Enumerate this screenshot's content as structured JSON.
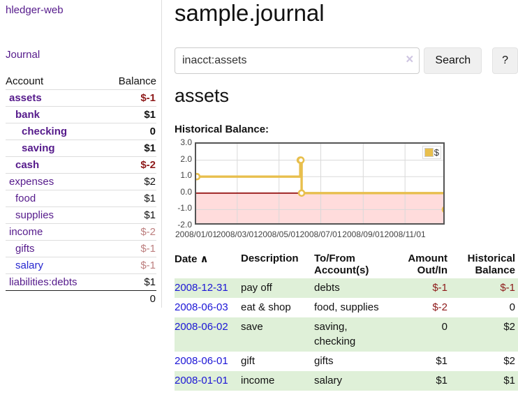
{
  "app": {
    "title": "hledger-web"
  },
  "sidebar": {
    "journal_link": "Journal",
    "accounts_table": {
      "headers": {
        "account": "Account",
        "balance": "Balance"
      },
      "rows": [
        {
          "name": "assets",
          "depth": 1,
          "bold": true,
          "name_blue": false,
          "balance": "$-1",
          "balance_class": "neg"
        },
        {
          "name": "bank",
          "depth": 2,
          "bold": true,
          "name_blue": false,
          "balance": "$1",
          "balance_class": ""
        },
        {
          "name": "checking",
          "depth": 3,
          "bold": true,
          "name_blue": false,
          "balance": "0",
          "balance_class": ""
        },
        {
          "name": "saving",
          "depth": 3,
          "bold": true,
          "name_blue": false,
          "balance": "$1",
          "balance_class": ""
        },
        {
          "name": "cash",
          "depth": 2,
          "bold": true,
          "name_blue": false,
          "balance": "$-2",
          "balance_class": "neg"
        },
        {
          "name": "expenses",
          "depth": 1,
          "bold": false,
          "name_blue": false,
          "balance": "$2",
          "balance_class": ""
        },
        {
          "name": "food",
          "depth": 2,
          "bold": false,
          "name_blue": false,
          "balance": "$1",
          "balance_class": ""
        },
        {
          "name": "supplies",
          "depth": 2,
          "bold": false,
          "name_blue": false,
          "balance": "$1",
          "balance_class": ""
        },
        {
          "name": "income",
          "depth": 1,
          "bold": false,
          "name_blue": false,
          "balance": "$-2",
          "balance_class": "neg-faded"
        },
        {
          "name": "gifts",
          "depth": 2,
          "bold": false,
          "name_blue": false,
          "balance": "$-1",
          "balance_class": "neg-faded"
        },
        {
          "name": "salary",
          "depth": 2,
          "bold": false,
          "name_blue": true,
          "balance": "$-1",
          "balance_class": "neg-faded"
        },
        {
          "name": "liabilities:debts",
          "depth": 1,
          "bold": false,
          "name_blue": false,
          "balance": "$1",
          "balance_class": ""
        }
      ],
      "total": "0"
    }
  },
  "main": {
    "title": "sample.journal",
    "search": {
      "value": "inacct:assets",
      "clear_icon": "×",
      "search_button": "Search",
      "help_button": "?"
    },
    "account_heading": "assets",
    "chart_label": "Historical Balance:"
  },
  "chart_data": {
    "type": "line",
    "step": true,
    "title": "Historical Balance",
    "series": [
      {
        "name": "$",
        "color": "#e8bf4d",
        "points": [
          [
            "2008-01-01",
            1
          ],
          [
            "2008-06-01",
            2
          ],
          [
            "2008-06-02",
            2
          ],
          [
            "2008-06-03",
            0
          ],
          [
            "2008-12-31",
            -1
          ]
        ]
      }
    ],
    "xrange": [
      "2008-01-01",
      "2008-12-31"
    ],
    "ylim": [
      -2.0,
      3.0
    ],
    "yticks": [
      {
        "v": 3,
        "label": "3.0"
      },
      {
        "v": 2,
        "label": "2.0"
      },
      {
        "v": 1,
        "label": "1.0"
      },
      {
        "v": 0,
        "label": "0.0"
      },
      {
        "v": -1,
        "label": "-1.0"
      },
      {
        "v": -2,
        "label": "-2.0"
      }
    ],
    "xticks": [
      {
        "date": "2008-01-01",
        "label": "2008/01/01"
      },
      {
        "date": "2008-03-01",
        "label": "2008/03/01"
      },
      {
        "date": "2008-05-01",
        "label": "2008/05/01"
      },
      {
        "date": "2008-07-01",
        "label": "2008/07/01"
      },
      {
        "date": "2008-09-01",
        "label": "2008/09/01"
      },
      {
        "date": "2008-11-01",
        "label": "2008/11/01"
      }
    ],
    "legend": {
      "label": "$",
      "position": "top-right"
    },
    "grid": true,
    "gridline_color": "#d9d9d9",
    "zero_line_color": "#8b0000",
    "negative_region_color": "#ffdcdc"
  },
  "register_table": {
    "headers": [
      "Date",
      "Description",
      "To/From Account(s)",
      "Amount Out/In",
      "Historical Balance"
    ],
    "sort_icon": "∧",
    "rows": [
      {
        "date": "2008-12-31",
        "description": "pay off",
        "accounts": "debts",
        "amount": "$-1",
        "amount_negative": true,
        "balance": "$-1",
        "balance_negative": true
      },
      {
        "date": "2008-06-03",
        "description": "eat & shop",
        "accounts": "food, supplies",
        "amount": "$-2",
        "amount_negative": true,
        "balance": "0",
        "balance_negative": false
      },
      {
        "date": "2008-06-02",
        "description": "save",
        "accounts": "saving, checking",
        "amount": "0",
        "amount_negative": false,
        "balance": "$2",
        "balance_negative": false
      },
      {
        "date": "2008-06-01",
        "description": "gift",
        "accounts": "gifts",
        "amount": "$1",
        "amount_negative": false,
        "balance": "$2",
        "balance_negative": false
      },
      {
        "date": "2008-01-01",
        "description": "income",
        "accounts": "salary",
        "amount": "$1",
        "amount_negative": false,
        "balance": "$1",
        "balance_negative": false
      }
    ]
  },
  "colors": {
    "link_purple": "#551a8b",
    "link_blue": "#1b15d6",
    "negative_strong": "#8e1a1a",
    "negative_faded": "#bd7f7f",
    "row_green": "#dff0d8",
    "chart_line_gold": "#e8bf4d"
  }
}
